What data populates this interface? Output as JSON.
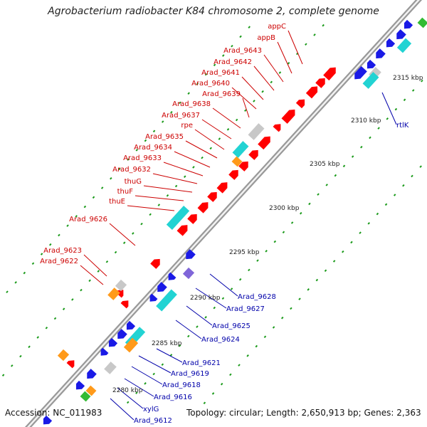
{
  "title": "Agrobacterium radiobacter K84 chromosome 2, complete genome",
  "footer": {
    "accession": "Accession: NC_011983",
    "topology": "Topology: circular; Length: 2,650,913 bp; Genes: 2,363"
  },
  "colors": {
    "forward_gene": "#ff0000",
    "reverse_gene": "#1a1ae6",
    "rrna_like": "#22d3d3",
    "pseudogene": "#c8c8c8",
    "orange_feature": "#ff9a1a",
    "purple_feature": "#8066d9",
    "green_feature": "#33bb33",
    "label_forward": "#cc0000",
    "label_reverse": "#0000aa",
    "dash": "#1a9a1a",
    "backbone": "#888888"
  },
  "scale_labels": [
    "2280 kbp",
    "2285 kbp",
    "2290 kbp",
    "2295 kbp",
    "2300 kbp",
    "2305 kbp",
    "2310 kbp",
    "2315 kbp"
  ],
  "forward_labels": [
    "appC",
    "appB",
    "Arad_9643",
    "Arad_9642",
    "Arad_9641",
    "Arad_9640",
    "Arad_9639",
    "Arad_9638",
    "Arad_9637",
    "rpe",
    "Arad_9635",
    "Arad_9634",
    "Arad_9633",
    "Arad_9632",
    "thuG",
    "thuF",
    "thuE",
    "Arad_9626",
    "Arad_9623",
    "Arad_9622"
  ],
  "reverse_labels": [
    "rtlK",
    "Arad_9628",
    "Arad_9627",
    "Arad_9625",
    "Arad_9624",
    "Arad_9621",
    "Arad_9619",
    "Arad_9618",
    "Arad_9616",
    "xylG",
    "Arad_9612"
  ]
}
